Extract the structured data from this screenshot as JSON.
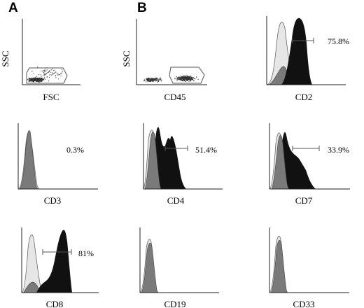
{
  "figure": {
    "panel_letters": [
      "A",
      "B"
    ],
    "y_axis_label": "SSC"
  },
  "chart_data": [
    {
      "type": "scatter",
      "panel": "A",
      "xlabel": "FSC",
      "ylabel": "SSC",
      "gate": true,
      "percent": ""
    },
    {
      "type": "scatter",
      "panel": "B",
      "xlabel": "CD45",
      "ylabel": "SSC",
      "gate": true,
      "percent": ""
    },
    {
      "type": "area",
      "panel": "",
      "xlabel": "CD2",
      "percent": "75.8%",
      "marker_bar": true
    },
    {
      "type": "area",
      "panel": "",
      "xlabel": "CD3",
      "percent": "0.3%",
      "marker_bar": false
    },
    {
      "type": "area",
      "panel": "",
      "xlabel": "CD4",
      "percent": "51.4%",
      "marker_bar": true
    },
    {
      "type": "area",
      "panel": "",
      "xlabel": "CD7",
      "percent": "33.9%",
      "marker_bar": true
    },
    {
      "type": "area",
      "panel": "",
      "xlabel": "CD8",
      "percent": "81%",
      "marker_bar": true
    },
    {
      "type": "area",
      "panel": "",
      "xlabel": "CD19",
      "percent": "",
      "marker_bar": false
    },
    {
      "type": "area",
      "panel": "",
      "xlabel": "CD33",
      "percent": "",
      "marker_bar": false
    }
  ],
  "colors": {
    "negative_control": "#e6e6e6",
    "isotype": "#7a7a7a",
    "positive": "#111111",
    "dots": "#333333",
    "axis": "#222222"
  }
}
